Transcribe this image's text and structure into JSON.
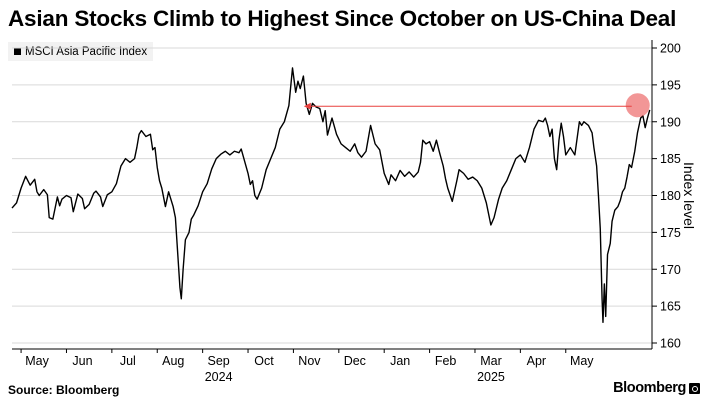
{
  "header": {
    "title": "Asian Stocks Climb to Highest Since October on US-China Deal"
  },
  "footer": {
    "source": "Source: Bloomberg",
    "brand": "Bloomberg"
  },
  "chart_data": {
    "type": "line",
    "title": "Asian Stocks Climb to Highest Since October on US-China Deal",
    "xlabel": "",
    "ylabel": "Index level",
    "ylim": [
      160,
      200
    ],
    "y_ticks": [
      160,
      165,
      170,
      175,
      180,
      185,
      190,
      195,
      200
    ],
    "y_axis_side": "right",
    "grid": "horizontal",
    "legend": "top-left",
    "line_color": "#000000",
    "month_ticks": [
      {
        "label": "May",
        "pos": 0.2
      },
      {
        "label": "Jun",
        "pos": 1.2
      },
      {
        "label": "Jul",
        "pos": 2.2
      },
      {
        "label": "Aug",
        "pos": 3.2
      },
      {
        "label": "Sep",
        "pos": 4.2
      },
      {
        "label": "Oct",
        "pos": 5.2
      },
      {
        "label": "Nov",
        "pos": 6.2
      },
      {
        "label": "Dec",
        "pos": 7.2
      },
      {
        "label": "Jan",
        "pos": 8.2
      },
      {
        "label": "Feb",
        "pos": 9.2
      },
      {
        "label": "Mar",
        "pos": 10.2
      },
      {
        "label": "Apr",
        "pos": 11.2
      },
      {
        "label": "May",
        "pos": 12.2
      }
    ],
    "year_labels": [
      {
        "label": "2024",
        "pos": 4.2
      },
      {
        "label": "2025",
        "pos": 10.2
      }
    ],
    "series": [
      {
        "name": "MSCI Asia Pacific Index",
        "points": [
          [
            0.0,
            178.3
          ],
          [
            0.1,
            179.0
          ],
          [
            0.2,
            181.0
          ],
          [
            0.3,
            182.6
          ],
          [
            0.4,
            181.4
          ],
          [
            0.5,
            182.2
          ],
          [
            0.55,
            180.5
          ],
          [
            0.6,
            180.0
          ],
          [
            0.7,
            180.8
          ],
          [
            0.78,
            180.1
          ],
          [
            0.82,
            177.0
          ],
          [
            0.9,
            176.8
          ],
          [
            1.0,
            179.8
          ],
          [
            1.05,
            178.6
          ],
          [
            1.1,
            179.5
          ],
          [
            1.2,
            180.0
          ],
          [
            1.3,
            179.7
          ],
          [
            1.35,
            177.8
          ],
          [
            1.45,
            180.2
          ],
          [
            1.55,
            179.6
          ],
          [
            1.6,
            178.2
          ],
          [
            1.7,
            178.8
          ],
          [
            1.8,
            180.3
          ],
          [
            1.85,
            180.6
          ],
          [
            1.95,
            179.8
          ],
          [
            2.0,
            178.5
          ],
          [
            2.1,
            180.1
          ],
          [
            2.2,
            180.5
          ],
          [
            2.3,
            181.6
          ],
          [
            2.4,
            184.0
          ],
          [
            2.5,
            185.0
          ],
          [
            2.6,
            184.5
          ],
          [
            2.7,
            185.0
          ],
          [
            2.75,
            186.5
          ],
          [
            2.8,
            188.3
          ],
          [
            2.85,
            188.8
          ],
          [
            2.95,
            188.0
          ],
          [
            3.05,
            188.3
          ],
          [
            3.1,
            186.2
          ],
          [
            3.15,
            186.5
          ],
          [
            3.2,
            183.8
          ],
          [
            3.25,
            182.0
          ],
          [
            3.3,
            181.0
          ],
          [
            3.38,
            178.5
          ],
          [
            3.45,
            180.5
          ],
          [
            3.55,
            178.5
          ],
          [
            3.6,
            177.0
          ],
          [
            3.7,
            167.5
          ],
          [
            3.73,
            166.0
          ],
          [
            3.77,
            170.0
          ],
          [
            3.82,
            174.0
          ],
          [
            3.9,
            175.0
          ],
          [
            3.95,
            176.8
          ],
          [
            4.0,
            177.3
          ],
          [
            4.1,
            178.6
          ],
          [
            4.2,
            180.5
          ],
          [
            4.3,
            181.6
          ],
          [
            4.4,
            183.6
          ],
          [
            4.5,
            185.0
          ],
          [
            4.6,
            185.6
          ],
          [
            4.7,
            186.0
          ],
          [
            4.8,
            185.5
          ],
          [
            4.9,
            186.0
          ],
          [
            5.0,
            185.8
          ],
          [
            5.05,
            186.3
          ],
          [
            5.1,
            185.2
          ],
          [
            5.2,
            183.0
          ],
          [
            5.25,
            181.5
          ],
          [
            5.3,
            182.0
          ],
          [
            5.35,
            180.0
          ],
          [
            5.4,
            179.5
          ],
          [
            5.5,
            181.0
          ],
          [
            5.6,
            183.5
          ],
          [
            5.7,
            185.0
          ],
          [
            5.8,
            186.5
          ],
          [
            5.9,
            189.0
          ],
          [
            6.0,
            190.0
          ],
          [
            6.1,
            192.2
          ],
          [
            6.18,
            197.3
          ],
          [
            6.25,
            194.0
          ],
          [
            6.3,
            195.5
          ],
          [
            6.35,
            194.5
          ],
          [
            6.42,
            196.2
          ],
          [
            6.48,
            192.5
          ],
          [
            6.55,
            191.0
          ],
          [
            6.62,
            192.5
          ],
          [
            6.7,
            192.0
          ],
          [
            6.78,
            191.8
          ],
          [
            6.85,
            190.0
          ],
          [
            6.9,
            191.5
          ],
          [
            6.95,
            188.2
          ],
          [
            7.05,
            190.5
          ],
          [
            7.15,
            188.3
          ],
          [
            7.25,
            187.0
          ],
          [
            7.35,
            186.5
          ],
          [
            7.45,
            186.0
          ],
          [
            7.55,
            187.0
          ],
          [
            7.62,
            185.8
          ],
          [
            7.7,
            185.2
          ],
          [
            7.8,
            186.0
          ],
          [
            7.9,
            189.5
          ],
          [
            8.0,
            187.0
          ],
          [
            8.1,
            186.2
          ],
          [
            8.2,
            183.0
          ],
          [
            8.3,
            181.5
          ],
          [
            8.35,
            182.8
          ],
          [
            8.45,
            182.0
          ],
          [
            8.55,
            183.4
          ],
          [
            8.65,
            182.6
          ],
          [
            8.75,
            183.2
          ],
          [
            8.85,
            182.5
          ],
          [
            8.95,
            183.2
          ],
          [
            9.0,
            184.5
          ],
          [
            9.05,
            187.5
          ],
          [
            9.12,
            187.0
          ],
          [
            9.2,
            187.3
          ],
          [
            9.28,
            186.0
          ],
          [
            9.35,
            187.5
          ],
          [
            9.42,
            185.8
          ],
          [
            9.5,
            184.0
          ],
          [
            9.55,
            182.3
          ],
          [
            9.6,
            181.0
          ],
          [
            9.7,
            179.2
          ],
          [
            9.8,
            182.0
          ],
          [
            9.85,
            183.5
          ],
          [
            9.95,
            183.0
          ],
          [
            10.05,
            182.2
          ],
          [
            10.15,
            182.5
          ],
          [
            10.25,
            182.0
          ],
          [
            10.35,
            181.0
          ],
          [
            10.45,
            179.0
          ],
          [
            10.55,
            176.0
          ],
          [
            10.62,
            177.0
          ],
          [
            10.72,
            179.5
          ],
          [
            10.8,
            181.0
          ],
          [
            10.9,
            182.0
          ],
          [
            11.0,
            183.5
          ],
          [
            11.1,
            185.0
          ],
          [
            11.2,
            185.5
          ],
          [
            11.3,
            184.5
          ],
          [
            11.4,
            186.5
          ],
          [
            11.5,
            189.0
          ],
          [
            11.6,
            190.2
          ],
          [
            11.7,
            190.0
          ],
          [
            11.75,
            190.5
          ],
          [
            11.8,
            189.5
          ],
          [
            11.85,
            188.0
          ],
          [
            11.9,
            189.0
          ],
          [
            11.95,
            185.0
          ],
          [
            12.0,
            183.5
          ],
          [
            12.05,
            187.5
          ],
          [
            12.1,
            189.8
          ],
          [
            12.15,
            188.0
          ],
          [
            12.2,
            185.5
          ],
          [
            12.3,
            186.5
          ],
          [
            12.4,
            185.5
          ],
          [
            12.5,
            190.0
          ],
          [
            12.55,
            189.5
          ],
          [
            12.6,
            190.0
          ],
          [
            12.7,
            189.5
          ],
          [
            12.78,
            188.5
          ],
          [
            12.82,
            186.5
          ],
          [
            12.88,
            184.0
          ],
          [
            12.92,
            180.0
          ],
          [
            12.96,
            175.5
          ],
          [
            13.0,
            166.0
          ],
          [
            13.02,
            162.8
          ],
          [
            13.05,
            168.0
          ],
          [
            13.08,
            163.6
          ],
          [
            13.12,
            172.0
          ],
          [
            13.18,
            173.5
          ],
          [
            13.22,
            176.5
          ],
          [
            13.28,
            178.0
          ],
          [
            13.35,
            178.5
          ],
          [
            13.4,
            179.3
          ],
          [
            13.45,
            180.5
          ],
          [
            13.5,
            181.0
          ],
          [
            13.55,
            182.5
          ],
          [
            13.6,
            184.2
          ],
          [
            13.65,
            183.8
          ],
          [
            13.72,
            186.0
          ],
          [
            13.78,
            188.5
          ],
          [
            13.85,
            190.5
          ],
          [
            13.9,
            190.8
          ],
          [
            13.95,
            189.2
          ],
          [
            14.0,
            190.5
          ],
          [
            14.05,
            191.6
          ]
        ]
      }
    ],
    "annotation": {
      "type": "reference-arrow",
      "color": "#e8403f",
      "from": [
        14.05,
        192.1
      ],
      "to": [
        6.43,
        192.1
      ],
      "highlight_point": [
        14.05,
        192.1
      ]
    }
  }
}
